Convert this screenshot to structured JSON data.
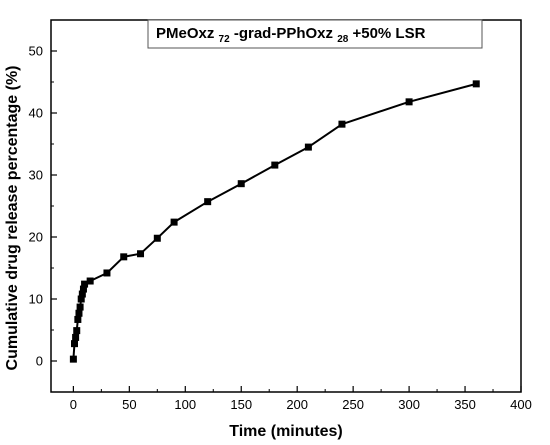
{
  "chart_data": {
    "type": "line",
    "xlabel": "Time (minutes)",
    "ylabel": "Cumulative drug release percentage (%)",
    "xlim": [
      -20,
      400
    ],
    "ylim": [
      -5,
      55
    ],
    "xticks": [
      0,
      50,
      100,
      150,
      200,
      250,
      300,
      350,
      400
    ],
    "yticks": [
      0,
      10,
      20,
      30,
      40,
      50
    ],
    "grid": false,
    "legend_position": "top-center",
    "legend": {
      "prefix": "PMeOxz",
      "sub1": "72",
      "middle": "-grad-PPhOxz",
      "sub2": "28",
      "suffix": "+50% LSR"
    },
    "series": [
      {
        "color": "#000000",
        "marker": "square",
        "x": [
          0,
          1,
          2,
          3,
          4,
          5,
          6,
          7,
          8,
          9,
          10,
          15,
          30,
          45,
          60,
          75,
          90,
          120,
          150,
          180,
          210,
          240,
          300,
          360
        ],
        "y": [
          0.3,
          2.8,
          3.8,
          4.9,
          6.7,
          7.7,
          8.7,
          10.0,
          10.8,
          11.6,
          12.4,
          12.9,
          14.2,
          16.8,
          17.3,
          19.8,
          22.4,
          25.7,
          28.6,
          31.6,
          34.5,
          38.2,
          41.8,
          44.7
        ]
      }
    ]
  }
}
